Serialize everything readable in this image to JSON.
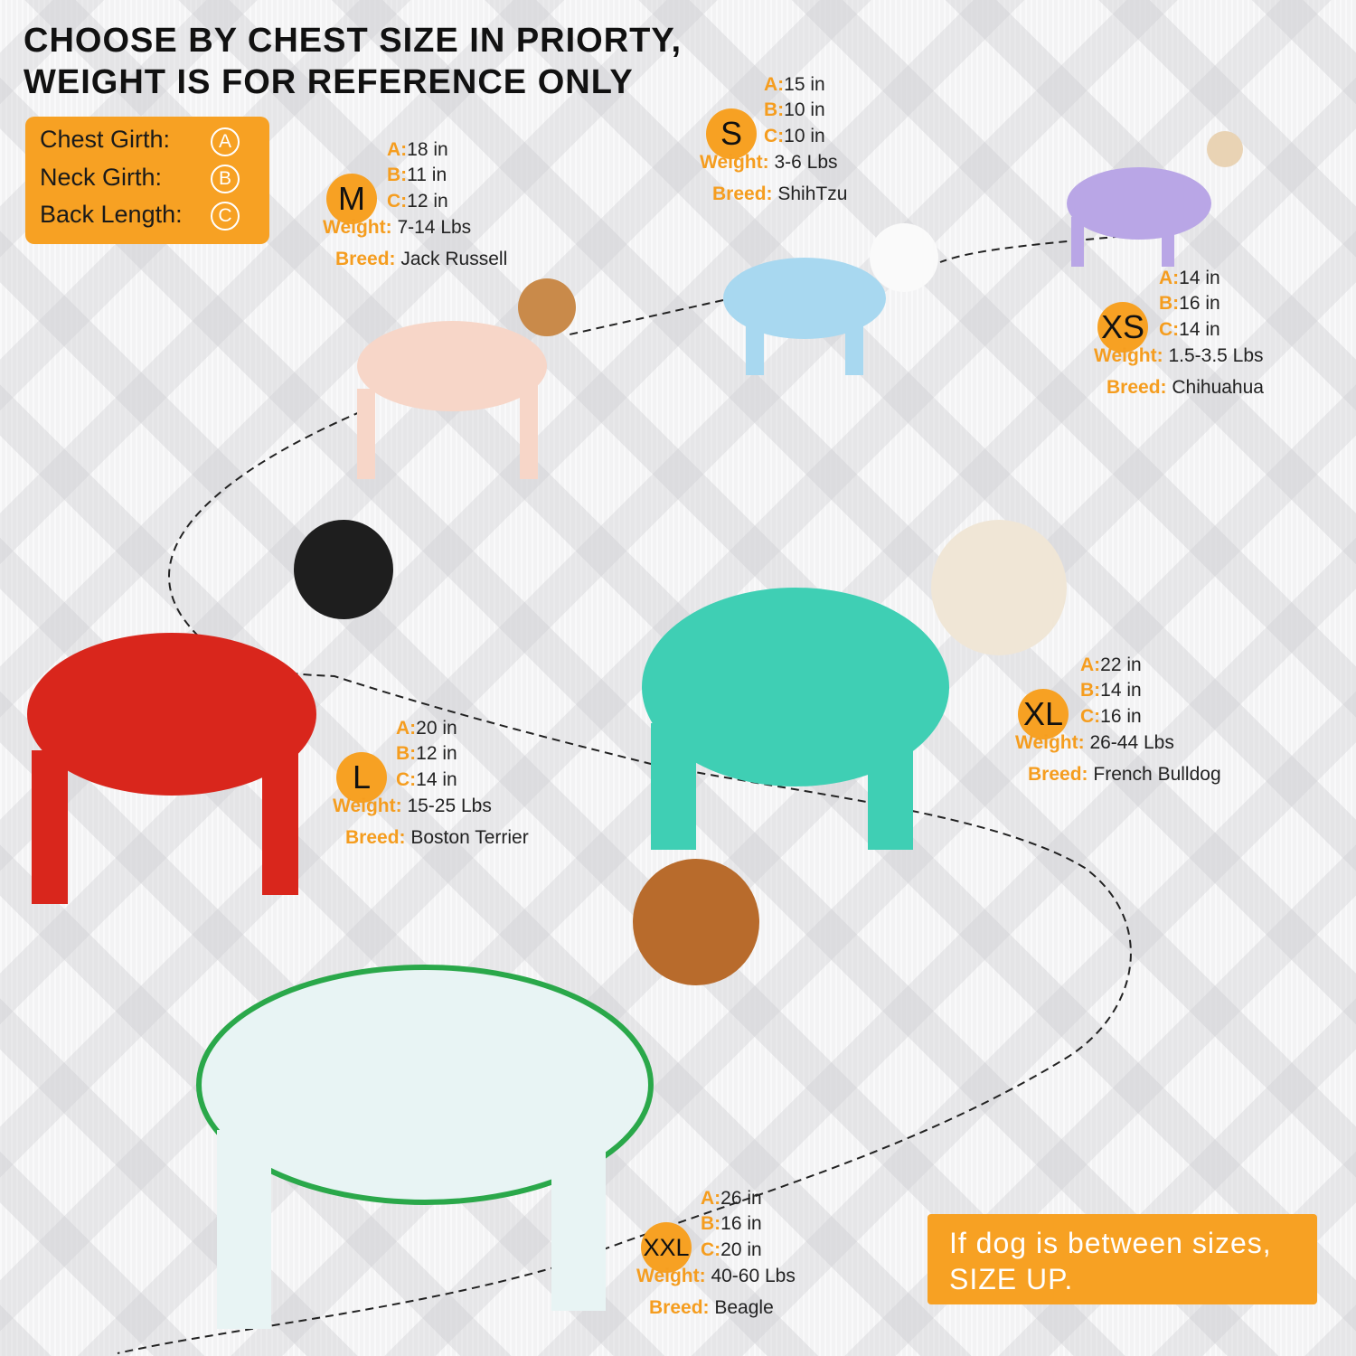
{
  "title": {
    "line1": "CHOOSE BY CHEST SIZE IN PRIORTY,",
    "line2": "WEIGHT IS FOR REFERENCE ONLY"
  },
  "legend": [
    {
      "label": "Chest Girth:",
      "badge": "A"
    },
    {
      "label": "Neck Girth:",
      "badge": "B"
    },
    {
      "label": "Back Length:",
      "badge": "C"
    }
  ],
  "labels": {
    "a": "A:",
    "b": "B:",
    "c": "C:",
    "weight": "Weight:",
    "breed": "Breed:"
  },
  "sizes": {
    "xs": {
      "size": "XS",
      "a": "14 in",
      "b": "16 in",
      "c": "14 in",
      "weight": "1.5-3.5 Lbs",
      "breed": "Chihuahua",
      "pajama_color": "#b9a6e6"
    },
    "s": {
      "size": "S",
      "a": "15 in",
      "b": "10 in",
      "c": "10 in",
      "weight": "3-6 Lbs",
      "breed": "ShihTzu",
      "pajama_color": "#a8d8f0"
    },
    "m": {
      "size": "M",
      "a": "18 in",
      "b": "11 in",
      "c": "12 in",
      "weight": "7-14 Lbs",
      "breed": "Jack Russell",
      "pajama_color": "#f7d6c8"
    },
    "l": {
      "size": "L",
      "a": "20 in",
      "b": "12 in",
      "c": "14 in",
      "weight": "15-25 Lbs",
      "breed": "Boston Terrier",
      "pajama_color": "#d9261c"
    },
    "xl": {
      "size": "XL",
      "a": "22 in",
      "b": "14 in",
      "c": "16 in",
      "weight": "26-44 Lbs",
      "breed": "French Bulldog",
      "pajama_color": "#3fcfb4"
    },
    "xxl": {
      "size": "XXL",
      "a": "26 in",
      "b": "16 in",
      "c": "20 in",
      "weight": "40-60 Lbs",
      "breed": "Beagle",
      "pajama_color": "#e8f4f4"
    }
  },
  "note": {
    "line1": "If dog is between sizes,",
    "line2": "SIZE UP."
  },
  "colors": {
    "accent": "#f7a123"
  }
}
